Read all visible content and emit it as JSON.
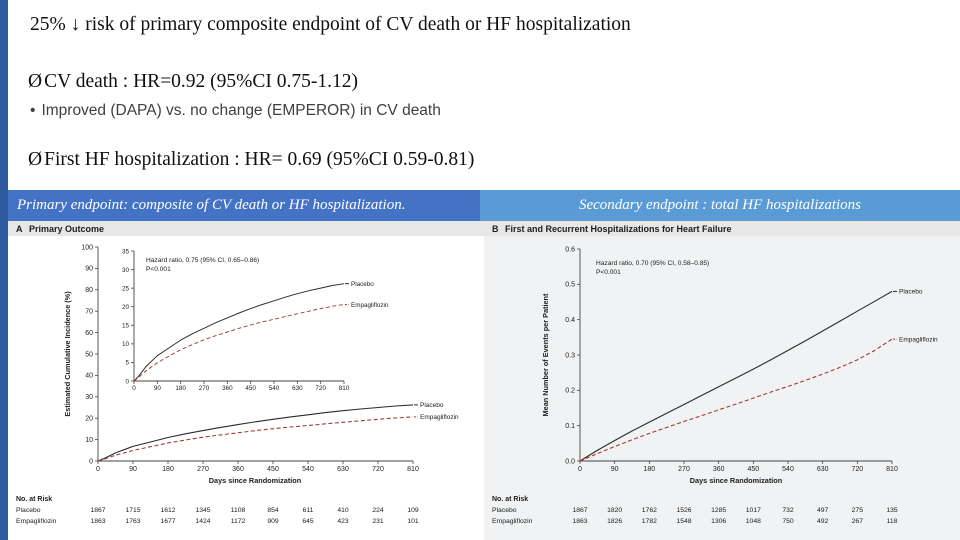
{
  "slide": {
    "title": "25% ↓ risk of primary composite endpoint of CV death or HF hospitalization",
    "bullets": {
      "cv_death": {
        "marker": "Ø",
        "text": "CV death :  HR=0.92 (95%CI 0.75-1.12)"
      },
      "dapa_note": {
        "marker": "•",
        "text": "Improved (DAPA) vs. no change (EMPEROR) in CV death"
      },
      "hf_hosp": {
        "marker": "Ø",
        "text": "First HF hospitalization : HR= 0.69 (95%CI 0.59-0.81)"
      }
    },
    "banner": {
      "left": "Primary endpoint: composite of CV death or HF hospitalization.",
      "right": "Secondary endpoint : total HF hospitalizations"
    }
  },
  "colors": {
    "accent_strip": "#2e5b9e",
    "banner_left_bg": "#4472c4",
    "banner_right_bg": "#5b9bd5",
    "panel_a_bg": "#ffffff",
    "panel_b_bg": "#f1f2f3",
    "panel_header_band": "#e7e7e7",
    "placebo_line": "#2b2b2b",
    "empagliflozin_line": "#a03d33"
  },
  "chart_data": [
    {
      "id": "primary-outcome",
      "panel_label": "A",
      "title": "Primary Outcome",
      "type": "line",
      "xlabel": "Days since Randomization",
      "ylabel": "Estimated Cumulative Incidence (%)",
      "xlim": [
        0,
        810
      ],
      "xticks": [
        0,
        90,
        180,
        270,
        360,
        450,
        540,
        630,
        720,
        810
      ],
      "ylim": [
        0,
        100
      ],
      "yticks": [
        0,
        10,
        20,
        30,
        40,
        50,
        60,
        70,
        80,
        90,
        100
      ],
      "inset": {
        "ylim": [
          0,
          35
        ],
        "yticks": [
          0,
          5,
          10,
          15,
          20,
          25,
          30,
          35
        ]
      },
      "annotation_lines": [
        "Hazard ratio, 0.75 (95% CI, 0.65–0.86)",
        "P<0.001"
      ],
      "legend_position": "right-of-line",
      "grid": false,
      "series": [
        {
          "name": "Placebo",
          "color": "#2b2b2b",
          "dash": "",
          "points": [
            [
              0,
              0
            ],
            [
              20,
              1.5
            ],
            [
              45,
              3.8
            ],
            [
              90,
              6.8
            ],
            [
              135,
              8.9
            ],
            [
              180,
              11
            ],
            [
              225,
              12.7
            ],
            [
              270,
              14.2
            ],
            [
              315,
              15.7
            ],
            [
              360,
              17
            ],
            [
              405,
              18.3
            ],
            [
              450,
              19.5
            ],
            [
              495,
              20.6
            ],
            [
              540,
              21.6
            ],
            [
              585,
              22.6
            ],
            [
              630,
              23.5
            ],
            [
              675,
              24.3
            ],
            [
              720,
              25
            ],
            [
              765,
              25.7
            ],
            [
              810,
              26.2
            ]
          ]
        },
        {
          "name": "Empagliflozin",
          "color": "#a03d33",
          "dash": "4,2.5",
          "points": [
            [
              0,
              0
            ],
            [
              20,
              1.1
            ],
            [
              45,
              2.7
            ],
            [
              90,
              4.9
            ],
            [
              135,
              6.7
            ],
            [
              180,
              8.4
            ],
            [
              225,
              9.8
            ],
            [
              270,
              11.1
            ],
            [
              315,
              12.2
            ],
            [
              360,
              13.2
            ],
            [
              405,
              14.2
            ],
            [
              450,
              15.1
            ],
            [
              495,
              15.9
            ],
            [
              540,
              16.6
            ],
            [
              585,
              17.4
            ],
            [
              630,
              18.1
            ],
            [
              675,
              18.8
            ],
            [
              720,
              19.5
            ],
            [
              765,
              20.1
            ],
            [
              810,
              20.6
            ]
          ]
        }
      ],
      "risk_table": {
        "label": "No. at Risk",
        "rows": [
          {
            "name": "Placebo",
            "values": [
              1867,
              1715,
              1612,
              1345,
              1108,
              854,
              611,
              410,
              224,
              109
            ]
          },
          {
            "name": "Empagliflozin",
            "values": [
              1863,
              1763,
              1677,
              1424,
              1172,
              909,
              645,
              423,
              231,
              101
            ]
          }
        ]
      }
    },
    {
      "id": "recurrent-hf-hospitalizations",
      "panel_label": "B",
      "title": "First and Recurrent Hospitalizations for Heart Failure",
      "type": "line",
      "xlabel": "Days since Randomization",
      "ylabel": "Mean Number of Events per Patient",
      "xlim": [
        0,
        810
      ],
      "xticks": [
        0,
        90,
        180,
        270,
        360,
        450,
        540,
        630,
        720,
        810
      ],
      "ylim": [
        0,
        0.6
      ],
      "yticks": [
        0,
        0.1,
        0.2,
        0.3,
        0.4,
        0.5,
        0.6
      ],
      "ytick_labels": [
        "0.0",
        "0.1",
        "0.2",
        "0.3",
        "0.4",
        "0.5",
        "0.6"
      ],
      "annotation_lines": [
        "Hazard ratio, 0.70 (95% CI, 0.58–0.85)",
        "P<0.001"
      ],
      "legend_position": "right-of-line",
      "grid": false,
      "series": [
        {
          "name": "Placebo",
          "color": "#2b2b2b",
          "dash": "",
          "points": [
            [
              0,
              0
            ],
            [
              45,
              0.03
            ],
            [
              90,
              0.058
            ],
            [
              135,
              0.085
            ],
            [
              180,
              0.11
            ],
            [
              225,
              0.135
            ],
            [
              270,
              0.16
            ],
            [
              315,
              0.185
            ],
            [
              360,
              0.21
            ],
            [
              405,
              0.235
            ],
            [
              450,
              0.26
            ],
            [
              495,
              0.286
            ],
            [
              540,
              0.313
            ],
            [
              585,
              0.34
            ],
            [
              630,
              0.368
            ],
            [
              675,
              0.396
            ],
            [
              720,
              0.424
            ],
            [
              765,
              0.452
            ],
            [
              810,
              0.48
            ]
          ]
        },
        {
          "name": "Empagliflozin",
          "color": "#a03d33",
          "dash": "4,2.5",
          "points": [
            [
              0,
              0
            ],
            [
              45,
              0.021
            ],
            [
              90,
              0.041
            ],
            [
              135,
              0.06
            ],
            [
              180,
              0.078
            ],
            [
              225,
              0.095
            ],
            [
              270,
              0.112
            ],
            [
              315,
              0.128
            ],
            [
              360,
              0.145
            ],
            [
              405,
              0.161
            ],
            [
              450,
              0.178
            ],
            [
              495,
              0.195
            ],
            [
              540,
              0.211
            ],
            [
              585,
              0.228
            ],
            [
              630,
              0.246
            ],
            [
              675,
              0.265
            ],
            [
              720,
              0.286
            ],
            [
              765,
              0.313
            ],
            [
              810,
              0.345
            ]
          ]
        }
      ],
      "risk_table": {
        "label": "No. at Risk",
        "rows": [
          {
            "name": "Placebo",
            "values": [
              1867,
              1820,
              1762,
              1526,
              1285,
              1017,
              732,
              497,
              275,
              135
            ]
          },
          {
            "name": "Empagliflozin",
            "values": [
              1863,
              1826,
              1782,
              1548,
              1306,
              1048,
              750,
              492,
              267,
              118
            ]
          }
        ]
      }
    }
  ]
}
